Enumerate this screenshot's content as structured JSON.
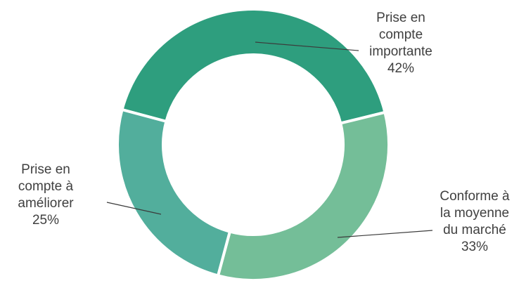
{
  "chart_data": {
    "type": "donut",
    "series": [
      {
        "values": [
          42,
          33,
          25
        ],
        "colors": [
          "#2e9e7e",
          "#74be98",
          "#52ae9c"
        ]
      }
    ],
    "slices": [
      {
        "label_lines": [
          "Prise en",
          "compte",
          "importante"
        ],
        "value": 42,
        "value_label": "42%",
        "color": "#2e9e7e"
      },
      {
        "label_lines": [
          "Conforme à",
          "la moyenne",
          "du marché"
        ],
        "value": 33,
        "value_label": "33%",
        "color": "#74be98"
      },
      {
        "label_lines": [
          "Prise en",
          "compte à",
          "améliorer"
        ],
        "value": 25,
        "value_label": "25%",
        "color": "#52ae9c"
      }
    ]
  }
}
